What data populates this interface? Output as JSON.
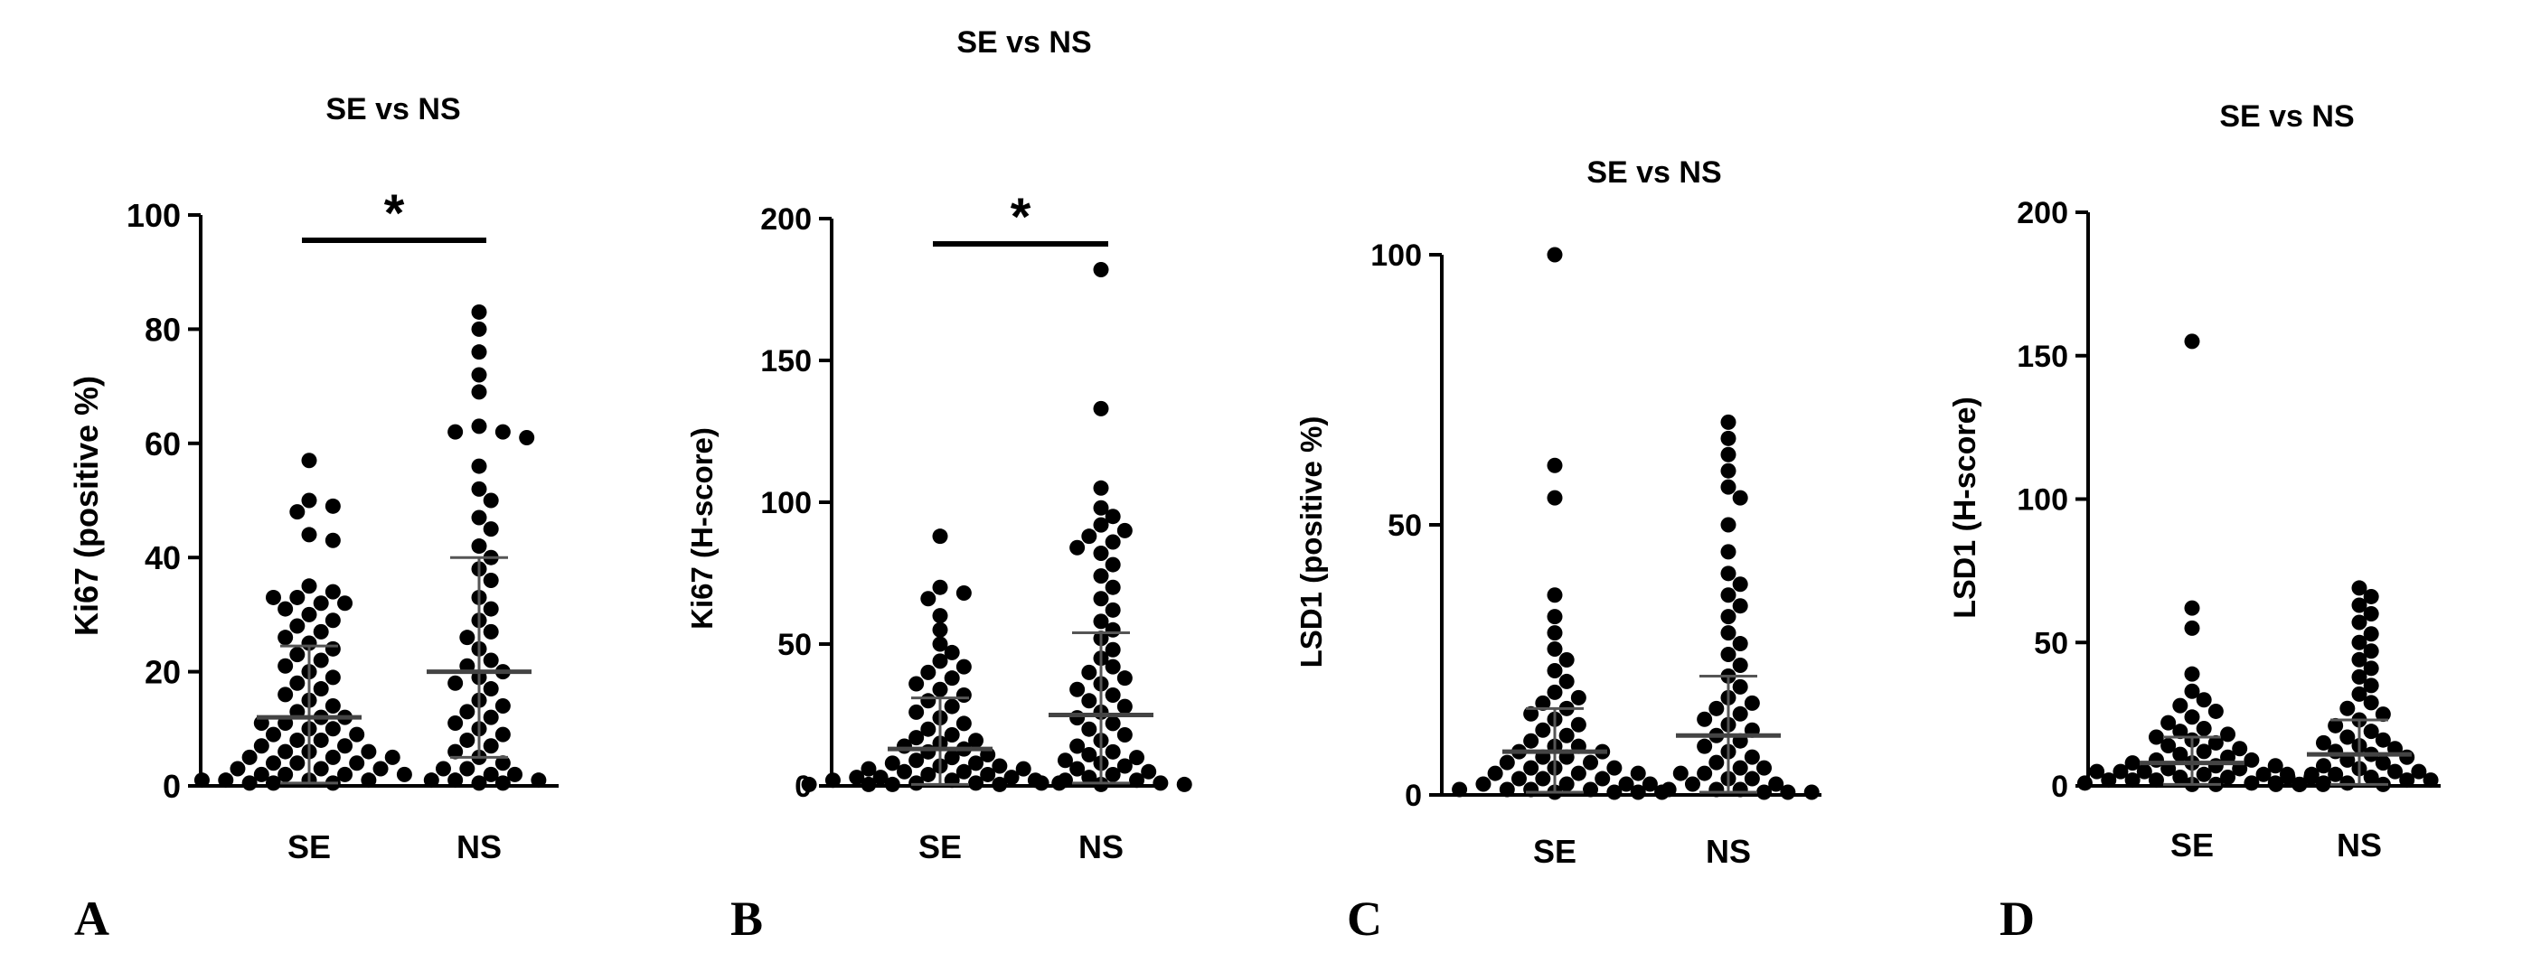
{
  "figure": {
    "panels": [
      "A",
      "B",
      "C",
      "D"
    ]
  },
  "chart_data": [
    {
      "panel_label": "A",
      "type": "scatter",
      "title": "SE vs NS",
      "xlabel": "",
      "ylabel": "Ki67 (positive %)",
      "categories": [
        "SE",
        "NS"
      ],
      "ylim": [
        0,
        100
      ],
      "yticks": [
        0,
        20,
        40,
        60,
        80,
        100
      ],
      "summary": [
        {
          "category": "SE",
          "mean": 12,
          "sd_lower": 0.5,
          "sd_upper": 24.5
        },
        {
          "category": "NS",
          "mean": 20,
          "sd_lower": 5,
          "sd_upper": 40
        }
      ],
      "significance": {
        "label": "*",
        "between": [
          "SE",
          "NS"
        ]
      },
      "series": [
        {
          "name": "SE",
          "values": [
            57,
            50,
            49,
            48,
            44,
            43,
            35,
            34,
            33,
            33,
            32,
            32,
            31,
            30,
            29,
            28,
            27,
            26,
            25,
            24,
            23,
            22,
            21,
            20,
            19,
            18,
            17,
            16,
            15,
            14,
            13,
            12,
            12,
            11,
            11,
            10,
            10,
            9,
            9,
            8,
            8,
            7,
            7,
            6,
            6,
            6,
            5,
            5,
            5,
            4,
            4,
            4,
            3,
            3,
            3,
            2,
            2,
            2,
            2,
            1,
            1,
            1,
            1,
            0.5,
            0.5,
            0.5
          ]
        },
        {
          "name": "NS",
          "values": [
            83,
            80,
            76,
            72,
            69,
            63,
            62,
            62,
            61,
            56,
            52,
            50,
            47,
            45,
            42,
            40,
            38,
            36,
            33,
            31,
            29,
            27,
            26,
            24,
            22,
            21,
            20,
            19,
            18,
            17,
            15,
            14,
            13,
            12,
            11,
            10,
            9,
            8,
            7,
            6,
            5,
            4,
            3,
            3,
            2,
            2,
            1,
            1,
            1,
            0.5,
            0.5
          ]
        }
      ]
    },
    {
      "panel_label": "B",
      "type": "scatter",
      "title": "SE vs NS",
      "xlabel": "",
      "ylabel": "Ki67 (H-score)",
      "categories": [
        "SE",
        "NS"
      ],
      "ylim": [
        0,
        200
      ],
      "yticks": [
        0,
        50,
        100,
        150,
        200
      ],
      "summary": [
        {
          "category": "SE",
          "mean": 13,
          "sd_lower": 0.5,
          "sd_upper": 31
        },
        {
          "category": "NS",
          "mean": 25,
          "sd_lower": 1,
          "sd_upper": 54
        }
      ],
      "significance": {
        "label": "*",
        "between": [
          "SE",
          "NS"
        ]
      },
      "series": [
        {
          "name": "SE",
          "values": [
            88,
            70,
            68,
            66,
            60,
            55,
            50,
            47,
            44,
            42,
            40,
            38,
            36,
            34,
            32,
            30,
            28,
            26,
            24,
            22,
            20,
            18,
            17,
            16,
            15,
            14,
            13,
            12,
            11,
            10,
            9,
            8,
            8,
            7,
            7,
            6,
            6,
            5,
            5,
            4,
            4,
            3,
            3,
            3,
            2,
            2,
            2,
            1,
            1,
            1,
            0.5,
            0.5,
            0.5,
            0.5
          ]
        },
        {
          "name": "NS",
          "values": [
            182,
            133,
            105,
            98,
            95,
            92,
            90,
            88,
            86,
            84,
            82,
            78,
            74,
            70,
            66,
            62,
            58,
            55,
            52,
            48,
            45,
            42,
            40,
            38,
            36,
            34,
            32,
            30,
            28,
            26,
            24,
            22,
            20,
            18,
            16,
            14,
            12,
            11,
            10,
            9,
            8,
            7,
            6,
            5,
            4,
            3,
            2,
            2,
            1,
            1,
            0.5,
            0.5
          ]
        }
      ]
    },
    {
      "panel_label": "C",
      "type": "scatter",
      "title": "SE vs NS",
      "xlabel": "",
      "ylabel": "LSD1 (positive %)",
      "categories": [
        "SE",
        "NS"
      ],
      "ylim": [
        0,
        100
      ],
      "yticks": [
        0,
        50,
        100
      ],
      "summary": [
        {
          "category": "SE",
          "mean": 8,
          "sd_lower": 0.5,
          "sd_upper": 16
        },
        {
          "category": "NS",
          "mean": 11,
          "sd_lower": 0.5,
          "sd_upper": 22
        }
      ],
      "significance": null,
      "series": [
        {
          "name": "SE",
          "values": [
            100,
            61,
            55,
            37,
            33,
            30,
            27,
            25,
            23,
            21,
            19,
            18,
            17,
            16,
            15,
            14,
            13,
            12,
            11,
            10,
            9,
            9,
            8,
            8,
            7,
            7,
            6,
            6,
            5,
            5,
            5,
            4,
            4,
            4,
            3,
            3,
            3,
            2,
            2,
            2,
            2,
            1,
            1,
            1,
            1,
            0.5,
            0.5,
            0.5,
            0.5
          ]
        },
        {
          "name": "NS",
          "values": [
            69,
            66,
            63,
            60,
            57,
            55,
            50,
            45,
            41,
            39,
            37,
            35,
            33,
            30,
            28,
            26,
            24,
            22,
            20,
            18,
            17,
            16,
            15,
            14,
            13,
            12,
            11,
            10,
            9,
            8,
            7,
            6,
            5,
            5,
            4,
            4,
            3,
            3,
            2,
            2,
            1,
            1,
            1,
            0.5,
            0.5,
            0.5
          ]
        }
      ]
    },
    {
      "panel_label": "D",
      "type": "scatter",
      "title": "SE vs NS",
      "xlabel": "",
      "ylabel": "LSD1 (H-score)",
      "categories": [
        "SE",
        "NS"
      ],
      "ylim": [
        0,
        200
      ],
      "yticks": [
        0,
        50,
        100,
        150,
        200
      ],
      "summary": [
        {
          "category": "SE",
          "mean": 8,
          "sd_lower": 0.5,
          "sd_upper": 17
        },
        {
          "category": "NS",
          "mean": 11,
          "sd_lower": 0.5,
          "sd_upper": 23
        }
      ],
      "significance": null,
      "series": [
        {
          "name": "SE",
          "values": [
            155,
            62,
            55,
            39,
            33,
            30,
            28,
            26,
            24,
            22,
            20,
            19,
            18,
            17,
            16,
            15,
            14,
            13,
            12,
            11,
            10,
            9,
            9,
            8,
            8,
            7,
            7,
            6,
            6,
            5,
            5,
            5,
            4,
            4,
            4,
            3,
            3,
            3,
            2,
            2,
            2,
            1,
            1,
            1,
            0.5,
            0.5,
            0.5,
            0.5
          ]
        },
        {
          "name": "NS",
          "values": [
            69,
            66,
            63,
            60,
            57,
            53,
            50,
            47,
            44,
            41,
            38,
            35,
            32,
            29,
            27,
            25,
            23,
            21,
            19,
            17,
            16,
            15,
            14,
            13,
            12,
            11,
            10,
            9,
            8,
            7,
            6,
            5,
            5,
            4,
            4,
            3,
            3,
            2,
            2,
            1,
            1,
            0.5,
            0.5,
            0.5
          ]
        }
      ]
    }
  ]
}
